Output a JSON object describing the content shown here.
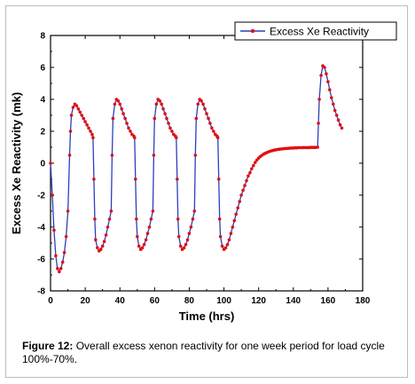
{
  "chart_data": {
    "type": "line",
    "title": "",
    "xlabel": "Time (hrs)",
    "ylabel": "Excess Xe Reactivity (mk)",
    "xlim": [
      0,
      180
    ],
    "ylim": [
      -8,
      8
    ],
    "x_ticks": [
      "0",
      "20",
      "40",
      "60",
      "80",
      "100",
      "120",
      "140",
      "160",
      "180"
    ],
    "y_ticks": [
      "-8",
      "-6",
      "-4",
      "-2",
      "0",
      "2",
      "4",
      "6",
      "8"
    ],
    "grid": false,
    "legend_position": "top-right",
    "series": [
      {
        "name": "Excess Xe Reactivity",
        "color": "#2a3fbf",
        "marker_color": "#e01010",
        "points": [
          [
            0,
            0.0
          ],
          [
            1,
            -2.0
          ],
          [
            2,
            -4.2
          ],
          [
            3,
            -5.8
          ],
          [
            4,
            -6.6
          ],
          [
            5,
            -6.8
          ],
          [
            6,
            -6.6
          ],
          [
            7,
            -6.2
          ],
          [
            8,
            -5.6
          ],
          [
            9,
            -4.6
          ],
          [
            10,
            -3.0
          ],
          [
            11,
            0.5
          ],
          [
            11.5,
            2.0
          ],
          [
            12,
            3.0
          ],
          [
            13,
            3.5
          ],
          [
            14,
            3.7
          ],
          [
            15,
            3.6
          ],
          [
            16,
            3.4
          ],
          [
            17,
            3.2
          ],
          [
            18,
            3.0
          ],
          [
            19,
            2.8
          ],
          [
            20,
            2.6
          ],
          [
            21,
            2.4
          ],
          [
            22,
            2.2
          ],
          [
            23,
            2.0
          ],
          [
            24,
            1.8
          ],
          [
            24.5,
            1.6
          ],
          [
            25,
            -1.0
          ],
          [
            25.5,
            -3.5
          ],
          [
            26,
            -4.8
          ],
          [
            27,
            -5.3
          ],
          [
            28,
            -5.5
          ],
          [
            29,
            -5.4
          ],
          [
            30,
            -5.2
          ],
          [
            31,
            -4.9
          ],
          [
            32,
            -4.5
          ],
          [
            33,
            -4.0
          ],
          [
            34,
            -3.5
          ],
          [
            35,
            -3.0
          ],
          [
            35.5,
            0.5
          ],
          [
            36,
            2.8
          ],
          [
            37,
            3.7
          ],
          [
            38,
            4.0
          ],
          [
            39,
            3.9
          ],
          [
            40,
            3.7
          ],
          [
            41,
            3.4
          ],
          [
            42,
            3.1
          ],
          [
            43,
            2.8
          ],
          [
            44,
            2.5
          ],
          [
            45,
            2.2
          ],
          [
            46,
            2.0
          ],
          [
            47,
            1.8
          ],
          [
            48,
            1.7
          ],
          [
            48.5,
            1.6
          ],
          [
            49,
            -1.0
          ],
          [
            49.5,
            -3.5
          ],
          [
            50,
            -4.6
          ],
          [
            51,
            -5.2
          ],
          [
            52,
            -5.4
          ],
          [
            53,
            -5.3
          ],
          [
            54,
            -5.1
          ],
          [
            55,
            -4.8
          ],
          [
            56,
            -4.4
          ],
          [
            57,
            -4.0
          ],
          [
            58,
            -3.5
          ],
          [
            59,
            -3.0
          ],
          [
            59.5,
            0.5
          ],
          [
            60,
            2.8
          ],
          [
            61,
            3.7
          ],
          [
            62,
            4.0
          ],
          [
            63,
            3.9
          ],
          [
            64,
            3.7
          ],
          [
            65,
            3.4
          ],
          [
            66,
            3.1
          ],
          [
            67,
            2.8
          ],
          [
            68,
            2.5
          ],
          [
            69,
            2.2
          ],
          [
            70,
            2.0
          ],
          [
            71,
            1.8
          ],
          [
            72,
            1.7
          ],
          [
            72.5,
            1.6
          ],
          [
            73,
            -1.0
          ],
          [
            73.5,
            -3.5
          ],
          [
            74,
            -4.6
          ],
          [
            75,
            -5.2
          ],
          [
            76,
            -5.4
          ],
          [
            77,
            -5.3
          ],
          [
            78,
            -5.1
          ],
          [
            79,
            -4.8
          ],
          [
            80,
            -4.4
          ],
          [
            81,
            -4.0
          ],
          [
            82,
            -3.5
          ],
          [
            83,
            -3.0
          ],
          [
            83.5,
            0.5
          ],
          [
            84,
            2.8
          ],
          [
            85,
            3.7
          ],
          [
            86,
            4.0
          ],
          [
            87,
            3.9
          ],
          [
            88,
            3.7
          ],
          [
            89,
            3.4
          ],
          [
            90,
            3.1
          ],
          [
            91,
            2.8
          ],
          [
            92,
            2.5
          ],
          [
            93,
            2.2
          ],
          [
            94,
            2.0
          ],
          [
            95,
            1.8
          ],
          [
            96,
            1.7
          ],
          [
            96.5,
            1.6
          ],
          [
            97,
            -1.0
          ],
          [
            97.5,
            -3.5
          ],
          [
            98,
            -4.6
          ],
          [
            99,
            -5.2
          ],
          [
            100,
            -5.4
          ],
          [
            101,
            -5.3
          ],
          [
            102,
            -5.1
          ],
          [
            103,
            -4.8
          ],
          [
            104,
            -4.4
          ],
          [
            105,
            -4.0
          ],
          [
            106,
            -3.6
          ],
          [
            107,
            -3.2
          ],
          [
            108,
            -2.8
          ],
          [
            109,
            -2.4
          ],
          [
            110,
            -2.0
          ],
          [
            111,
            -1.7
          ],
          [
            112,
            -1.4
          ],
          [
            113,
            -1.1
          ],
          [
            114,
            -0.8
          ],
          [
            115,
            -0.6
          ],
          [
            116,
            -0.35
          ],
          [
            117,
            -0.15
          ],
          [
            118,
            0.05
          ],
          [
            119,
            0.2
          ],
          [
            120,
            0.32
          ],
          [
            121,
            0.42
          ],
          [
            122,
            0.5
          ],
          [
            123,
            0.57
          ],
          [
            124,
            0.63
          ],
          [
            125,
            0.68
          ],
          [
            126,
            0.72
          ],
          [
            127,
            0.76
          ],
          [
            128,
            0.79
          ],
          [
            129,
            0.82
          ],
          [
            130,
            0.84
          ],
          [
            131,
            0.86
          ],
          [
            132,
            0.88
          ],
          [
            133,
            0.89
          ],
          [
            134,
            0.9
          ],
          [
            135,
            0.91
          ],
          [
            136,
            0.92
          ],
          [
            137,
            0.93
          ],
          [
            138,
            0.94
          ],
          [
            139,
            0.95
          ],
          [
            140,
            0.95
          ],
          [
            141,
            0.96
          ],
          [
            142,
            0.96
          ],
          [
            143,
            0.97
          ],
          [
            144,
            0.97
          ],
          [
            145,
            0.97
          ],
          [
            146,
            0.98
          ],
          [
            147,
            0.98
          ],
          [
            148,
            0.98
          ],
          [
            149,
            0.98
          ],
          [
            150,
            0.99
          ],
          [
            151,
            0.99
          ],
          [
            152,
            0.99
          ],
          [
            153,
            0.99
          ],
          [
            154,
            1.0
          ],
          [
            154.5,
            2.5
          ],
          [
            155,
            4.0
          ],
          [
            156,
            5.5
          ],
          [
            157,
            6.1
          ],
          [
            158,
            6.0
          ],
          [
            159,
            5.6
          ],
          [
            160,
            5.1
          ],
          [
            161,
            4.6
          ],
          [
            162,
            4.1
          ],
          [
            163,
            3.7
          ],
          [
            164,
            3.3
          ],
          [
            165,
            3.0
          ],
          [
            166,
            2.7
          ],
          [
            167,
            2.4
          ],
          [
            168,
            2.2
          ]
        ]
      }
    ]
  },
  "caption": {
    "label": "Figure 12:",
    "text": " Overall excess xenon reactivity for one week period for load cycle 100%-70%."
  }
}
